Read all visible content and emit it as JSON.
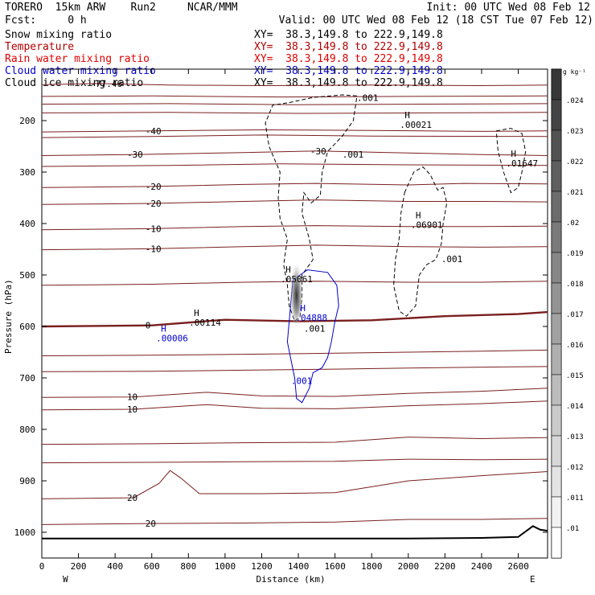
{
  "header": {
    "left_line1": "TORERO  15km ARW    Run2     NCAR/MMM",
    "left_line2": "Fcst:     0 h",
    "init": "Init: 00 UTC Wed 08 Feb 12",
    "valid": "Valid: 00 UTC Wed 08 Feb 12 (18 CST Tue 07 Feb 12)"
  },
  "legend": [
    {
      "name": "Snow mixing ratio",
      "color": "#000000",
      "range": "XY=  38.3,149.8 to 222.9,149.8"
    },
    {
      "name": "Temperature",
      "color": "#b00000",
      "range": "XY=  38.3,149.8 to 222.9,149.8"
    },
    {
      "name": "Rain water mixing ratio",
      "color": "#e00000",
      "range": "XY=  38.3,149.8 to 222.9,149.8"
    },
    {
      "name": "Cloud water mixing ratio",
      "color": "#0000cc",
      "range": "XY=  38.3,149.8 to 222.9,149.8"
    },
    {
      "name": "Cloud ice mixing ratio",
      "color": "#000000",
      "range": "XY=  38.3,149.8 to 222.9,149.8"
    }
  ],
  "colors": {
    "temperature": "#7a1f1f",
    "cloud_water": "#0000cc",
    "snow": "#000000",
    "terrain": "#000000"
  },
  "chart_data": {
    "type": "contour cross-section",
    "xlabel": "Distance (km)",
    "ylabel": "Pressure (hPa)",
    "xlim": [
      0,
      2760
    ],
    "ylim": [
      1050,
      100
    ],
    "x_ticks": [
      "0",
      "200",
      "400",
      "600",
      "800",
      "1000",
      "1200",
      "1400",
      "1600",
      "1800",
      "2000",
      "2200",
      "2400",
      "2600"
    ],
    "y_ticks": [
      "200",
      "300",
      "400",
      "500",
      "600",
      "700",
      "800",
      "900",
      "1000"
    ],
    "x_end_labels": [
      "W",
      "E"
    ],
    "colorbar": {
      "unit": "g kg⁻¹",
      "ticks": [
        ".01",
        ".011",
        ".012",
        ".013",
        ".014",
        ".015",
        ".016",
        ".017",
        ".018",
        ".019",
        ".02",
        ".021",
        ".022",
        ".023",
        ".024"
      ]
    },
    "temperature_contours": [
      {
        "label": "-77.46",
        "points": [
          [
            0,
            130
          ],
          [
            300,
            128
          ],
          [
            700,
            131
          ],
          [
            1200,
            132
          ],
          [
            1800,
            131
          ],
          [
            2400,
            132
          ],
          [
            2760,
            131
          ]
        ]
      },
      {
        "label": "",
        "points": [
          [
            0,
            153
          ],
          [
            600,
            152
          ],
          [
            1300,
            154
          ],
          [
            2000,
            153
          ],
          [
            2760,
            152
          ]
        ]
      },
      {
        "label": "",
        "points": [
          [
            0,
            168
          ],
          [
            700,
            167
          ],
          [
            1400,
            169
          ],
          [
            2100,
            168
          ],
          [
            2760,
            167
          ]
        ]
      },
      {
        "label": "",
        "points": [
          [
            0,
            185
          ],
          [
            700,
            184
          ],
          [
            1400,
            186
          ],
          [
            2100,
            185
          ],
          [
            2760,
            184
          ]
        ]
      },
      {
        "label": "-40",
        "points": [
          [
            0,
            222
          ],
          [
            600,
            220
          ],
          [
            1200,
            218
          ],
          [
            1800,
            219
          ],
          [
            2400,
            221
          ],
          [
            2760,
            220
          ]
        ]
      },
      {
        "label": "",
        "points": [
          [
            0,
            233
          ],
          [
            600,
            231
          ],
          [
            1200,
            228
          ],
          [
            1800,
            230
          ],
          [
            2760,
            231
          ]
        ]
      },
      {
        "label": "-30 -30",
        "points": [
          [
            0,
            268
          ],
          [
            500,
            266
          ],
          [
            1100,
            262
          ],
          [
            1500,
            259
          ],
          [
            2000,
            263
          ],
          [
            2400,
            266
          ],
          [
            2760,
            268
          ]
        ]
      },
      {
        "label": "",
        "points": [
          [
            0,
            289
          ],
          [
            700,
            287
          ],
          [
            1300,
            284
          ],
          [
            2000,
            286
          ],
          [
            2760,
            287
          ]
        ]
      },
      {
        "label": "-20",
        "points": [
          [
            0,
            330
          ],
          [
            600,
            328
          ],
          [
            1100,
            324
          ],
          [
            1500,
            322
          ],
          [
            2000,
            325
          ],
          [
            2300,
            322
          ],
          [
            2760,
            323
          ]
        ]
      },
      {
        "label": "-20",
        "points": [
          [
            0,
            363
          ],
          [
            600,
            361
          ],
          [
            1100,
            357
          ],
          [
            1500,
            354
          ],
          [
            2000,
            357
          ],
          [
            2400,
            357
          ],
          [
            2760,
            358
          ]
        ]
      },
      {
        "label": "-10",
        "points": [
          [
            0,
            412
          ],
          [
            600,
            410
          ],
          [
            1100,
            406
          ],
          [
            1500,
            404
          ],
          [
            2000,
            406
          ],
          [
            2400,
            406
          ],
          [
            2760,
            405
          ]
        ]
      },
      {
        "label": "-10",
        "points": [
          [
            0,
            451
          ],
          [
            600,
            449
          ],
          [
            1100,
            445
          ],
          [
            1500,
            442
          ],
          [
            2000,
            445
          ],
          [
            2400,
            446
          ],
          [
            2760,
            445
          ]
        ]
      },
      {
        "label": "",
        "points": [
          [
            0,
            520
          ],
          [
            600,
            518
          ],
          [
            1100,
            514
          ],
          [
            1500,
            512
          ],
          [
            2000,
            514
          ],
          [
            2400,
            514
          ],
          [
            2760,
            512
          ]
        ]
      },
      {
        "label": "0",
        "points": [
          [
            0,
            600
          ],
          [
            600,
            598
          ],
          [
            1000,
            587
          ],
          [
            1400,
            590
          ],
          [
            1800,
            588
          ],
          [
            2200,
            580
          ],
          [
            2600,
            576
          ],
          [
            2760,
            572
          ]
        ]
      },
      {
        "label": "",
        "points": [
          [
            0,
            657
          ],
          [
            600,
            656
          ],
          [
            1100,
            654
          ],
          [
            1600,
            652
          ],
          [
            2000,
            650
          ],
          [
            2400,
            648
          ],
          [
            2760,
            646
          ]
        ]
      },
      {
        "label": "",
        "points": [
          [
            0,
            688
          ],
          [
            600,
            687
          ],
          [
            1100,
            685
          ],
          [
            1600,
            683
          ],
          [
            2000,
            681
          ],
          [
            2400,
            679
          ],
          [
            2760,
            678
          ]
        ]
      },
      {
        "label": "10",
        "points": [
          [
            0,
            738
          ],
          [
            500,
            737
          ],
          [
            900,
            728
          ],
          [
            1200,
            735
          ],
          [
            1600,
            736
          ],
          [
            2000,
            730
          ],
          [
            2400,
            726
          ],
          [
            2760,
            720
          ]
        ]
      },
      {
        "label": "10",
        "points": [
          [
            0,
            762
          ],
          [
            500,
            761
          ],
          [
            900,
            752
          ],
          [
            1200,
            759
          ],
          [
            1600,
            760
          ],
          [
            2000,
            754
          ],
          [
            2400,
            750
          ],
          [
            2760,
            745
          ]
        ]
      },
      {
        "label": "",
        "points": [
          [
            0,
            829
          ],
          [
            600,
            828
          ],
          [
            1100,
            826
          ],
          [
            1600,
            825
          ],
          [
            2000,
            815
          ],
          [
            2400,
            818
          ],
          [
            2760,
            816
          ]
        ]
      },
      {
        "label": "",
        "points": [
          [
            0,
            865
          ],
          [
            600,
            864
          ],
          [
            1100,
            863
          ],
          [
            1600,
            862
          ],
          [
            2000,
            858
          ],
          [
            2400,
            859
          ],
          [
            2760,
            858
          ]
        ]
      },
      {
        "label": "20",
        "points": [
          [
            0,
            935
          ],
          [
            500,
            933
          ],
          [
            640,
            905
          ],
          [
            700,
            880
          ],
          [
            760,
            895
          ],
          [
            860,
            925
          ],
          [
            1200,
            925
          ],
          [
            1600,
            923
          ],
          [
            2000,
            900
          ],
          [
            2400,
            890
          ],
          [
            2760,
            882
          ]
        ]
      },
      {
        "label": "20",
        "points": [
          [
            0,
            985
          ],
          [
            600,
            983
          ],
          [
            1100,
            982
          ],
          [
            1600,
            980
          ],
          [
            2000,
            975
          ],
          [
            2400,
            975
          ],
          [
            2760,
            973
          ]
        ]
      }
    ],
    "snow_contours_label": ".001",
    "cloud_water_contour_label": ".001",
    "maxima": [
      {
        "symbol": "H",
        "value": ".00114",
        "x": 830,
        "p": 580
      },
      {
        "symbol": "H",
        "value": ".00006",
        "x": 650,
        "p": 610
      },
      {
        "symbol": "H",
        "value": ".05061",
        "x": 1330,
        "p": 495
      },
      {
        "symbol": "H",
        "value": ".04888",
        "x": 1410,
        "p": 570
      },
      {
        "symbol": "H",
        "value": ".06901",
        "x": 2040,
        "p": 390
      },
      {
        "symbol": "H",
        "value": ".00021",
        "x": 1980,
        "p": 195
      },
      {
        "symbol": "H",
        "value": ".01647",
        "x": 2560,
        "p": 270
      }
    ],
    "other_labels": [
      ".001"
    ]
  }
}
